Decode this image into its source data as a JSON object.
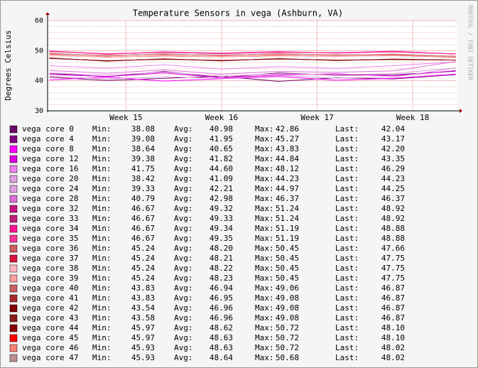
{
  "chart_data": {
    "type": "line",
    "title": "Temperature Sensors in vega (Ashburn, VA)",
    "y_label": "Degrees Celsius",
    "watermark": "RRDTOOL / TOBI OETIKER",
    "x": [
      14.2,
      14.8,
      15.4,
      16.0,
      16.6,
      17.2,
      17.8,
      18.45
    ],
    "xlim": [
      14.18,
      18.46
    ],
    "xticks": [
      {
        "value": 15,
        "label": "Week 15"
      },
      {
        "value": 16,
        "label": "Week 16"
      },
      {
        "value": 17,
        "label": "Week 17"
      },
      {
        "value": 18,
        "label": "Week 18"
      }
    ],
    "ylim": [
      30,
      60
    ],
    "yticks": [
      30,
      40,
      50,
      60
    ],
    "grid": true,
    "stat_labels": [
      "Min:",
      "Avg:",
      "Max:",
      "Last:"
    ],
    "series": [
      {
        "name": "vega core 0",
        "color": "#6a0a6a",
        "values": [
          41.2,
          40.1,
          40.8,
          41.5,
          39.8,
          41.0,
          40.6,
          42.04
        ],
        "min": "38.08",
        "avg": "40.98",
        "max": "42.86",
        "last": "42.04"
      },
      {
        "name": "vega core 4",
        "color": "#800080",
        "values": [
          42.5,
          41.3,
          43.1,
          41.0,
          42.6,
          41.8,
          42.0,
          43.17
        ],
        "min": "39.08",
        "avg": "41.95",
        "max": "45.27",
        "last": "43.17"
      },
      {
        "name": "vega core 8",
        "color": "#ff00ff",
        "values": [
          40.3,
          41.2,
          39.9,
          40.7,
          41.4,
          40.2,
          40.8,
          42.2
        ],
        "min": "38.64",
        "avg": "40.65",
        "max": "43.83",
        "last": "42.20"
      },
      {
        "name": "vega core 12",
        "color": "#dd00dd",
        "values": [
          42.1,
          41.4,
          42.6,
          41.0,
          41.9,
          42.3,
          41.6,
          43.35
        ],
        "min": "39.38",
        "avg": "41.82",
        "max": "44.84",
        "last": "43.35"
      },
      {
        "name": "vega core 16",
        "color": "#ee82ee",
        "values": [
          45.0,
          44.2,
          45.3,
          43.9,
          44.7,
          44.1,
          45.0,
          46.29
        ],
        "min": "41.75",
        "avg": "44.60",
        "max": "48.12",
        "last": "46.29"
      },
      {
        "name": "vega core 20",
        "color": "#dda0dd",
        "values": [
          41.5,
          40.6,
          41.3,
          40.8,
          41.7,
          40.9,
          41.2,
          44.23
        ],
        "min": "38.42",
        "avg": "41.09",
        "max": "44.23",
        "last": "44.23"
      },
      {
        "name": "vega core 24",
        "color": "#e0a0e0",
        "values": [
          42.6,
          41.8,
          42.9,
          41.5,
          42.3,
          42.0,
          42.4,
          44.25
        ],
        "min": "39.33",
        "avg": "42.21",
        "max": "44.97",
        "last": "44.25"
      },
      {
        "name": "vega core 28",
        "color": "#da70d6",
        "values": [
          43.4,
          42.5,
          43.6,
          42.2,
          43.1,
          42.8,
          43.3,
          46.37
        ],
        "min": "40.79",
        "avg": "42.98",
        "max": "46.37",
        "last": "46.37"
      },
      {
        "name": "vega core 32",
        "color": "#c71585",
        "values": [
          49.8,
          48.9,
          49.5,
          49.0,
          49.6,
          49.2,
          49.7,
          48.92
        ],
        "min": "46.67",
        "avg": "49.32",
        "max": "51.24",
        "last": "48.92"
      },
      {
        "name": "vega core 33",
        "color": "#c0207a",
        "values": [
          49.7,
          49.0,
          49.4,
          49.1,
          49.5,
          49.3,
          49.6,
          48.92
        ],
        "min": "46.67",
        "avg": "49.33",
        "max": "51.24",
        "last": "48.92"
      },
      {
        "name": "vega core 34",
        "color": "#ff1493",
        "values": [
          49.9,
          48.8,
          49.6,
          49.1,
          49.5,
          49.3,
          49.8,
          48.88
        ],
        "min": "46.67",
        "avg": "49.34",
        "max": "51.19",
        "last": "48.88"
      },
      {
        "name": "vega core 35",
        "color": "#ff3399",
        "values": [
          49.8,
          49.0,
          49.5,
          49.2,
          49.7,
          49.2,
          49.6,
          48.88
        ],
        "min": "46.67",
        "avg": "49.35",
        "max": "51.19",
        "last": "48.88"
      },
      {
        "name": "vega core 36",
        "color": "#cd5c5c",
        "values": [
          48.7,
          47.8,
          48.4,
          47.9,
          48.5,
          48.1,
          48.6,
          47.66
        ],
        "min": "45.24",
        "avg": "48.20",
        "max": "50.45",
        "last": "47.66"
      },
      {
        "name": "vega core 37",
        "color": "#dc143c",
        "values": [
          48.6,
          47.9,
          48.3,
          48.0,
          48.4,
          48.2,
          48.5,
          47.75
        ],
        "min": "45.24",
        "avg": "48.21",
        "max": "50.45",
        "last": "47.75"
      },
      {
        "name": "vega core 38",
        "color": "#ffb6c1",
        "values": [
          48.8,
          47.7,
          48.5,
          47.9,
          48.6,
          48.0,
          48.7,
          47.75
        ],
        "min": "45.24",
        "avg": "48.22",
        "max": "50.45",
        "last": "47.75"
      },
      {
        "name": "vega core 39",
        "color": "#ffa0a0",
        "values": [
          48.7,
          47.9,
          48.4,
          48.1,
          48.5,
          48.2,
          48.6,
          47.75
        ],
        "min": "45.24",
        "avg": "48.23",
        "max": "50.45",
        "last": "47.75"
      },
      {
        "name": "vega core 40",
        "color": "#c86060",
        "values": [
          47.5,
          46.6,
          47.2,
          46.7,
          47.3,
          46.8,
          47.1,
          46.87
        ],
        "min": "43.83",
        "avg": "46.94",
        "max": "49.06",
        "last": "46.87"
      },
      {
        "name": "vega core 41",
        "color": "#a52a2a",
        "values": [
          47.4,
          46.7,
          47.1,
          46.8,
          47.2,
          46.9,
          47.0,
          46.87
        ],
        "min": "43.83",
        "avg": "46.95",
        "max": "49.08",
        "last": "46.87"
      },
      {
        "name": "vega core 42",
        "color": "#800000",
        "values": [
          47.6,
          46.5,
          47.3,
          46.6,
          47.4,
          46.7,
          47.2,
          46.87
        ],
        "min": "43.54",
        "avg": "46.96",
        "max": "49.08",
        "last": "46.87"
      },
      {
        "name": "vega core 43",
        "color": "#8b1a1a",
        "values": [
          47.5,
          46.6,
          47.2,
          46.7,
          47.3,
          46.8,
          47.1,
          46.87
        ],
        "min": "43.58",
        "avg": "46.96",
        "max": "49.08",
        "last": "46.87"
      },
      {
        "name": "vega core 44",
        "color": "#8b0000",
        "values": [
          49.1,
          48.3,
          48.9,
          48.4,
          49.0,
          48.5,
          48.8,
          48.1
        ],
        "min": "45.97",
        "avg": "48.62",
        "max": "50.72",
        "last": "48.10"
      },
      {
        "name": "vega core 45",
        "color": "#ff0000",
        "values": [
          49.0,
          48.4,
          48.8,
          48.5,
          48.9,
          48.6,
          48.7,
          48.1
        ],
        "min": "45.97",
        "avg": "48.63",
        "max": "50.72",
        "last": "48.10"
      },
      {
        "name": "vega core 46",
        "color": "#fa8072",
        "values": [
          49.2,
          48.2,
          49.0,
          48.3,
          49.1,
          48.4,
          48.9,
          48.02
        ],
        "min": "45.93",
        "avg": "48.63",
        "max": "50.72",
        "last": "48.02"
      },
      {
        "name": "vega core 47",
        "color": "#bc8f8f",
        "values": [
          49.1,
          48.3,
          48.9,
          48.4,
          49.0,
          48.5,
          48.8,
          48.02
        ],
        "min": "45.93",
        "avg": "48.64",
        "max": "50.68",
        "last": "48.02"
      }
    ]
  }
}
